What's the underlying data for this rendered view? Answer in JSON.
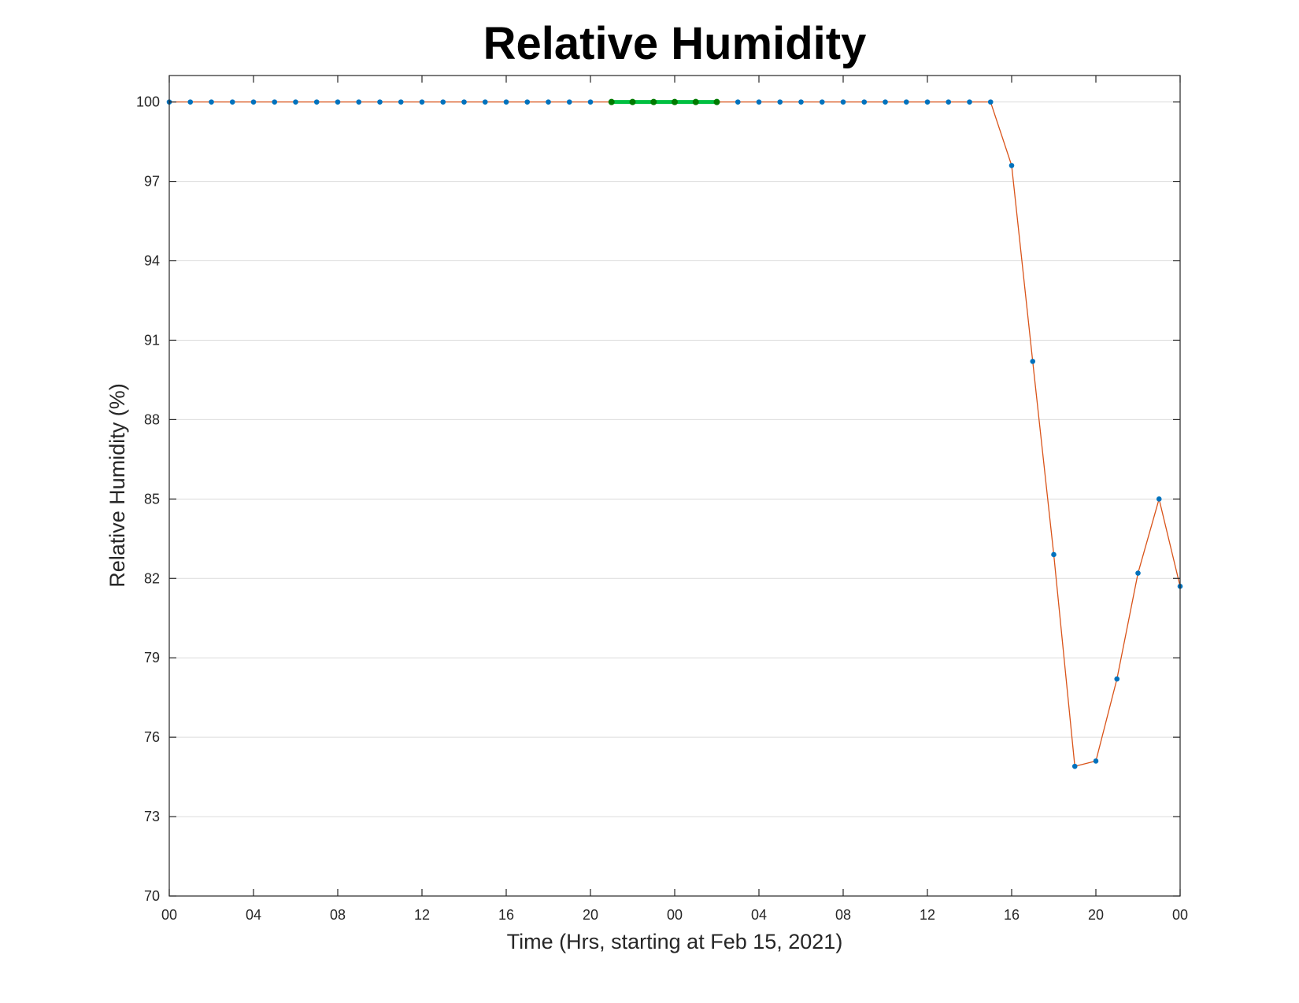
{
  "chart_data": {
    "type": "line",
    "title": "Relative Humidity",
    "xlabel": "Time (Hrs, starting at Feb 15, 2021)",
    "ylabel": "Relative Humidity (%)",
    "xlim": [
      0,
      48
    ],
    "ylim": [
      70,
      101
    ],
    "grid": "horizontal",
    "yticks": [
      70,
      73,
      76,
      79,
      82,
      85,
      88,
      91,
      94,
      97,
      100
    ],
    "xticks": [
      {
        "x": 0,
        "label": "00"
      },
      {
        "x": 4,
        "label": "04"
      },
      {
        "x": 8,
        "label": "08"
      },
      {
        "x": 12,
        "label": "12"
      },
      {
        "x": 16,
        "label": "16"
      },
      {
        "x": 20,
        "label": "20"
      },
      {
        "x": 24,
        "label": "00"
      },
      {
        "x": 28,
        "label": "04"
      },
      {
        "x": 32,
        "label": "08"
      },
      {
        "x": 36,
        "label": "12"
      },
      {
        "x": 40,
        "label": "16"
      },
      {
        "x": 44,
        "label": "20"
      },
      {
        "x": 48,
        "label": "00"
      }
    ],
    "series": [
      {
        "line_color": "#d95319",
        "marker_color": "#0072bd",
        "x": [
          0,
          1,
          2,
          3,
          4,
          5,
          6,
          7,
          8,
          9,
          10,
          11,
          12,
          13,
          14,
          15,
          16,
          17,
          18,
          19,
          20,
          21,
          22,
          23,
          24,
          25,
          26,
          27,
          28,
          29,
          30,
          31,
          32,
          33,
          34,
          35,
          36,
          37,
          38,
          39,
          40,
          41,
          42,
          43,
          44,
          45,
          46,
          47,
          48
        ],
        "values": [
          100,
          100,
          100,
          100,
          100,
          100,
          100,
          100,
          100,
          100,
          100,
          100,
          100,
          100,
          100,
          100,
          100,
          100,
          100,
          100,
          100,
          100,
          100,
          100,
          100,
          100,
          100,
          100,
          100,
          100,
          100,
          100,
          100,
          100,
          100,
          100,
          100,
          100,
          100,
          100,
          97.6,
          90.2,
          82.9,
          74.9,
          75.1,
          78.2,
          82.2,
          85.0,
          81.7
        ]
      },
      {
        "line_color": "#00c040",
        "marker_color": "#007a00",
        "x": [
          21,
          22,
          23,
          24,
          25,
          26
        ],
        "values": [
          100,
          100,
          100,
          100,
          100,
          100
        ]
      }
    ]
  }
}
